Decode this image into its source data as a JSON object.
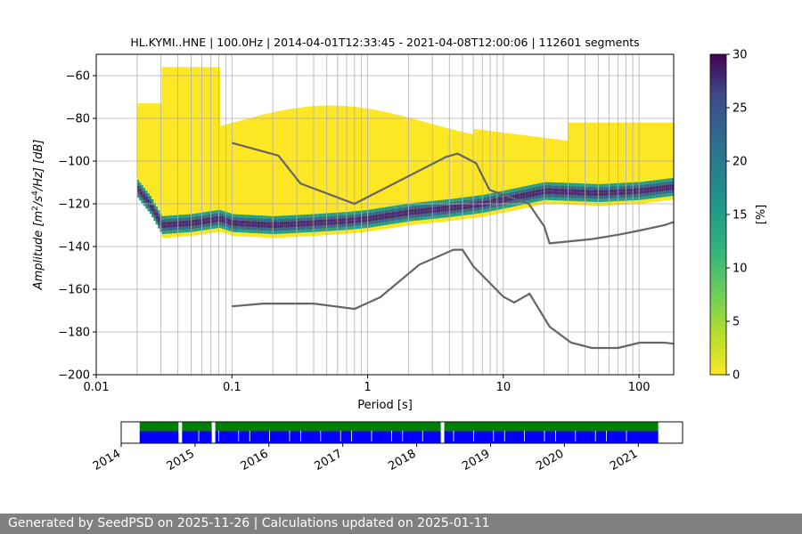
{
  "chart_data": [
    {
      "type": "heatmap",
      "title": "HL.KYMI..HNE | 100.0Hz | 2014-04-01T12:33:45 - 2021-04-08T12:00:06 | 112601 segments",
      "xlabel": "Period [s]",
      "ylabel_prefix": "Amplitude [m",
      "ylabel_mid": "/s",
      "ylabel_suffix": "/Hz] [dB]",
      "ylabel_sup1": "2",
      "ylabel_sup2": "4",
      "x_scale": "log",
      "xlim": [
        0.01,
        180
      ],
      "ylim": [
        -200,
        -50
      ],
      "x_ticks": [
        0.01,
        0.1,
        1,
        10,
        100
      ],
      "x_tick_labels": [
        "0.01",
        "0.1",
        "1",
        "10",
        "100"
      ],
      "y_ticks": [
        -200,
        -180,
        -160,
        -140,
        -120,
        -100,
        -80,
        -60
      ],
      "y_tick_labels": [
        "−200",
        "−180",
        "−160",
        "−140",
        "−120",
        "−100",
        "−80",
        "−60"
      ],
      "grid": true,
      "colorbar": {
        "label": "[%]",
        "range": [
          0,
          30
        ],
        "ticks": [
          0,
          5,
          10,
          15,
          20,
          25,
          30
        ],
        "tick_labels": [
          "0",
          "5",
          "10",
          "15",
          "20",
          "25",
          "30"
        ],
        "colormap": "viridis_r"
      },
      "mode_curve": {
        "x": [
          0.02,
          0.025,
          0.03,
          0.05,
          0.08,
          0.1,
          0.2,
          0.4,
          0.7,
          1.0,
          2.0,
          4.0,
          7.0,
          10,
          20,
          50,
          100,
          180
        ],
        "y": [
          -113,
          -121,
          -130,
          -129,
          -127,
          -129,
          -130,
          -129,
          -128,
          -127,
          -124,
          -122,
          -120,
          -118,
          -114,
          -115,
          -114,
          -112
        ]
      },
      "series": [
        {
          "x": [
            0.1,
            0.22,
            0.32,
            0.8,
            3.8,
            4.6,
            6.3,
            7.9,
            15.4,
            20,
            21.9,
            31.6,
            45,
            70,
            101,
            154,
            180
          ],
          "y": [
            -91.5,
            -97.4,
            -110.5,
            -120,
            -98,
            -96.5,
            -101,
            -113.5,
            -120,
            -130.5,
            -138.5,
            -137.5,
            -136.5,
            -134.5,
            -132.5,
            -130,
            -128.5
          ]
        },
        {
          "x": [
            0.1,
            0.17,
            0.4,
            0.8,
            1.24,
            2.4,
            4.3,
            5.0,
            6.0,
            10,
            12,
            15.6,
            21.9,
            31.6,
            45,
            70,
            101,
            154,
            180
          ],
          "y": [
            -168,
            -166.7,
            -166.7,
            -169.2,
            -163.7,
            -148.5,
            -141.5,
            -141.5,
            -149.2,
            -163.5,
            -166.2,
            -162.1,
            -177.5,
            -185,
            -187.5,
            -187.5,
            -185,
            -185,
            -185.5
          ]
        }
      ]
    },
    {
      "type": "bar",
      "x_ticks": [
        "2014",
        "2015",
        "2016",
        "2017",
        "2018",
        "2019",
        "2020",
        "2021"
      ],
      "xlim": [
        2014.0,
        2021.6
      ],
      "colors": {
        "segments": "#008000",
        "coverage": "#0000ff"
      },
      "data_range": [
        2014.25,
        2021.27
      ],
      "gaps": [
        2014.8,
        2015.25,
        2018.35
      ]
    }
  ],
  "footer": {
    "text": "Generated by SeedPSD on 2025-11-26 | Calculations updated on 2025-01-11"
  }
}
